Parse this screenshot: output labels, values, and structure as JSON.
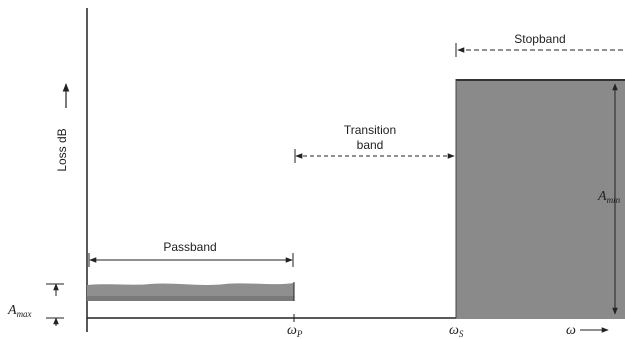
{
  "figure": {
    "y_axis_label": "Loss dB",
    "passband_label": "Passband",
    "transition_label_line1": "Transition",
    "transition_label_line2": "band",
    "stopband_label": "Stopband",
    "a_max_symbol": "A",
    "a_max_subscript": "max",
    "a_min_symbol": "A",
    "a_min_subscript": "min",
    "omega_p_symbol": "ω",
    "omega_p_subscript": "P",
    "omega_s_symbol": "ω",
    "omega_s_subscript": "S",
    "omega_axis_label": "ω"
  },
  "colors": {
    "passband_fill": "#8f8f8f",
    "stopband_fill": "#8a8a8a",
    "line": "#222222"
  }
}
